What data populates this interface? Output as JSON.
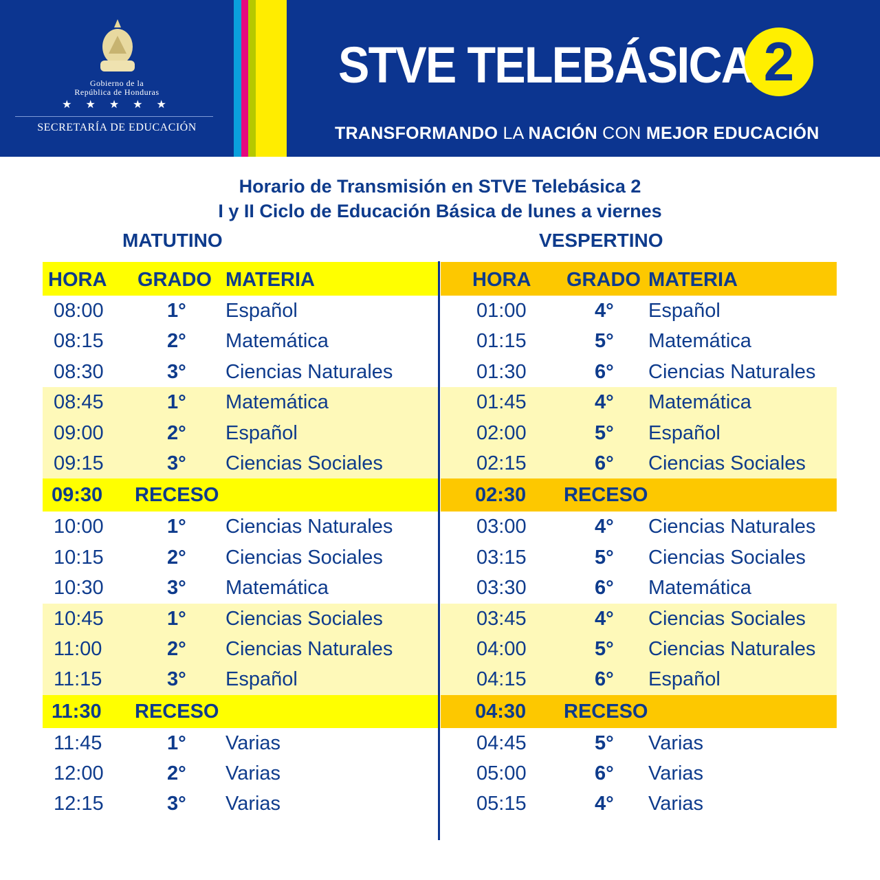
{
  "banner": {
    "gov_line1": "Gobierno de la",
    "gov_line2": "República de Honduras",
    "stars": "★ ★ ★ ★ ★",
    "secretaria": "SECRETARÍA DE EDUCACIÓN",
    "title": "STVE TELEBÁSICA",
    "badge": "2",
    "tagline": [
      {
        "t": "TRANSFORMANDO",
        "b": true
      },
      {
        "t": " LA ",
        "b": false
      },
      {
        "t": "NACIÓN",
        "b": true
      },
      {
        "t": " CON ",
        "b": false
      },
      {
        "t": "MEJOR EDUCACIÓN",
        "b": true
      }
    ],
    "colors": {
      "blue": "#0c3590",
      "cyan": "#0aa0dc",
      "magenta": "#e5097f",
      "lime": "#b5c800",
      "yellow": "#ffed00"
    }
  },
  "heading": {
    "line1": "Horario de Transmisión en STVE Telebásica 2",
    "line2": "I y II Ciclo de Educación Básica de lunes a viernes"
  },
  "morning": {
    "label": "MATUTINO",
    "header_color": "#ffff00",
    "columns": [
      "HORA",
      "GRADO",
      "MATERIA"
    ],
    "rows": [
      {
        "hora": "08:00",
        "grado": "1°",
        "materia": "Español",
        "band": "w"
      },
      {
        "hora": "08:15",
        "grado": "2°",
        "materia": "Matemática",
        "band": "w"
      },
      {
        "hora": "08:30",
        "grado": "3°",
        "materia": "Ciencias Naturales",
        "band": "w"
      },
      {
        "hora": "08:45",
        "grado": "1°",
        "materia": "Matemática",
        "band": "y"
      },
      {
        "hora": "09:00",
        "grado": "2°",
        "materia": "Español",
        "band": "y"
      },
      {
        "hora": "09:15",
        "grado": "3°",
        "materia": "Ciencias Sociales",
        "band": "y"
      },
      {
        "hora": "09:30",
        "receso": "RECESO"
      },
      {
        "hora": "10:00",
        "grado": "1°",
        "materia": "Ciencias Naturales",
        "band": "w"
      },
      {
        "hora": "10:15",
        "grado": "2°",
        "materia": "Ciencias Sociales",
        "band": "w"
      },
      {
        "hora": "10:30",
        "grado": "3°",
        "materia": "Matemática",
        "band": "w"
      },
      {
        "hora": "10:45",
        "grado": "1°",
        "materia": "Ciencias Sociales",
        "band": "y"
      },
      {
        "hora": "11:00",
        "grado": "2°",
        "materia": "Ciencias Naturales",
        "band": "y"
      },
      {
        "hora": "11:15",
        "grado": "3°",
        "materia": "Español",
        "band": "y"
      },
      {
        "hora": "11:30",
        "receso": "RECESO"
      },
      {
        "hora": "11:45",
        "grado": "1°",
        "materia": "Varias",
        "band": "w"
      },
      {
        "hora": "12:00",
        "grado": "2°",
        "materia": "Varias",
        "band": "w"
      },
      {
        "hora": "12:15",
        "grado": "3°",
        "materia": "Varias",
        "band": "w"
      }
    ]
  },
  "afternoon": {
    "label": "VESPERTINO",
    "header_color": "#fdc800",
    "columns": [
      "HORA",
      "GRADO",
      "MATERIA"
    ],
    "rows": [
      {
        "hora": "01:00",
        "grado": "4°",
        "materia": "Español",
        "band": "w"
      },
      {
        "hora": "01:15",
        "grado": "5°",
        "materia": "Matemática",
        "band": "w"
      },
      {
        "hora": "01:30",
        "grado": "6°",
        "materia": "Ciencias Naturales",
        "band": "w"
      },
      {
        "hora": "01:45",
        "grado": "4°",
        "materia": "Matemática",
        "band": "y"
      },
      {
        "hora": "02:00",
        "grado": "5°",
        "materia": "Español",
        "band": "y"
      },
      {
        "hora": "02:15",
        "grado": "6°",
        "materia": "Ciencias Sociales",
        "band": "y"
      },
      {
        "hora": "02:30",
        "receso": "RECESO"
      },
      {
        "hora": "03:00",
        "grado": "4°",
        "materia": "Ciencias Naturales",
        "band": "w"
      },
      {
        "hora": "03:15",
        "grado": "5°",
        "materia": "Ciencias Sociales",
        "band": "w"
      },
      {
        "hora": "03:30",
        "grado": "6°",
        "materia": "Matemática",
        "band": "w"
      },
      {
        "hora": "03:45",
        "grado": "4°",
        "materia": "Ciencias Sociales",
        "band": "y"
      },
      {
        "hora": "04:00",
        "grado": "5°",
        "materia": "Ciencias Naturales",
        "band": "y"
      },
      {
        "hora": "04:15",
        "grado": "6°",
        "materia": "Español",
        "band": "y"
      },
      {
        "hora": "04:30",
        "receso": "RECESO"
      },
      {
        "hora": "04:45",
        "grado": "5°",
        "materia": "Varias",
        "band": "w"
      },
      {
        "hora": "05:00",
        "grado": "6°",
        "materia": "Varias",
        "band": "w"
      },
      {
        "hora": "05:15",
        "grado": "4°",
        "materia": "Varias",
        "band": "w"
      }
    ]
  },
  "light_band_color": "#fef9b9"
}
